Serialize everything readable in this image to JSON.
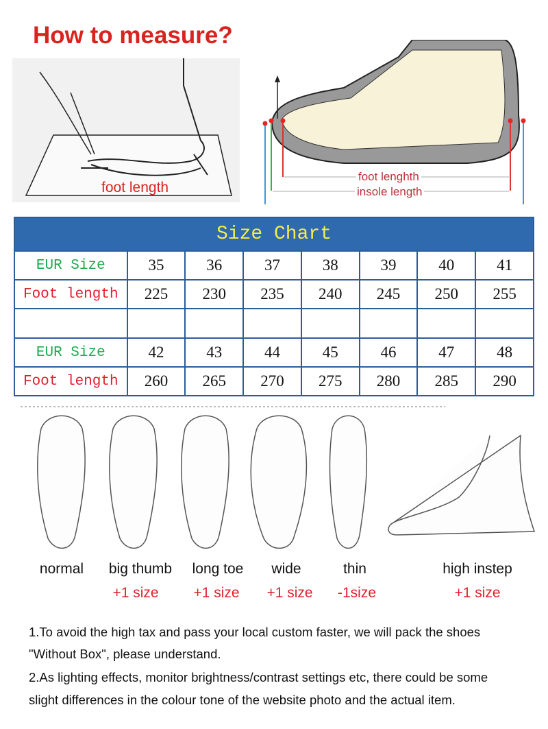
{
  "title": "How to measure?",
  "measure": {
    "label": "foot length"
  },
  "shoe": {
    "foot_label": "foot lenghth",
    "insole_label": "insole length"
  },
  "size_chart": {
    "title": "Size Chart",
    "eur_label": "EUR Size",
    "foot_label": "Foot length",
    "eur_1": [
      "35",
      "36",
      "37",
      "38",
      "39",
      "40",
      "41"
    ],
    "foot_1": [
      "225",
      "230",
      "235",
      "240",
      "245",
      "250",
      "255"
    ],
    "eur_2": [
      "42",
      "43",
      "44",
      "45",
      "46",
      "47",
      "48"
    ],
    "foot_2": [
      "260",
      "265",
      "270",
      "275",
      "280",
      "285",
      "290"
    ]
  },
  "foot_types": [
    {
      "name": "normal",
      "adjust": ""
    },
    {
      "name": "big thumb",
      "adjust": "+1 size"
    },
    {
      "name": "long toe",
      "adjust": "+1 size"
    },
    {
      "name": "wide",
      "adjust": "+1 size"
    },
    {
      "name": "thin",
      "adjust": "-1size"
    },
    {
      "name": "high instep",
      "adjust": "+1 size"
    }
  ],
  "notes": [
    "1.To avoid the high tax and pass your local custom faster, we will pack the shoes",
    " \"Without Box\", please understand.",
    "2.As lighting effects, monitor brightness/contrast settings etc, there could be some",
    " slight differences in the colour tone of the website photo and the actual item."
  ]
}
